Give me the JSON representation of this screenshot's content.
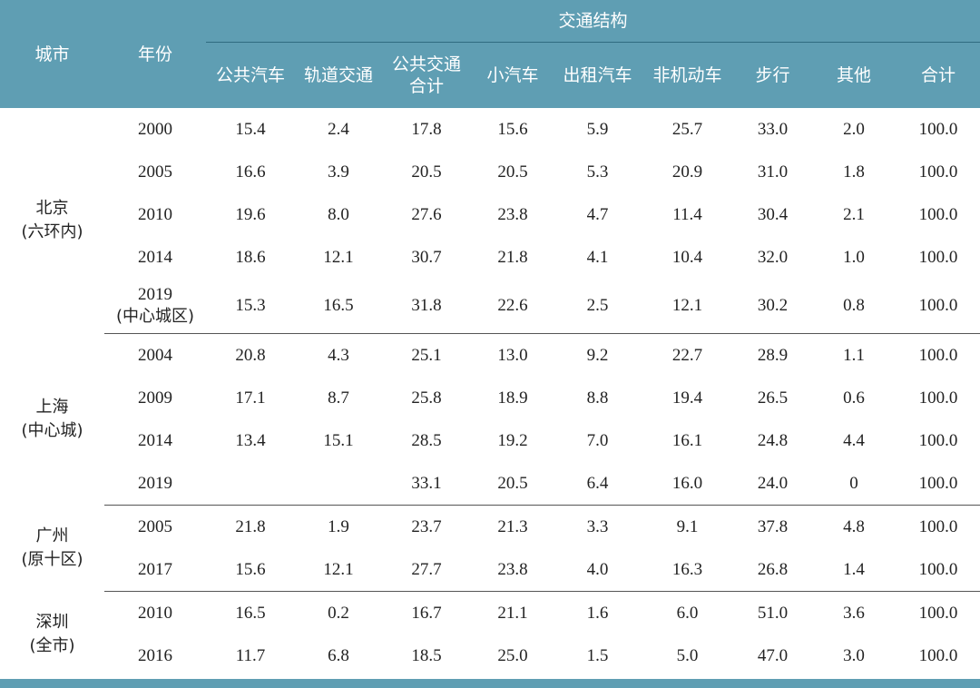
{
  "header": {
    "city": "城市",
    "year": "年份",
    "group": "交通结构",
    "columns": [
      "公共汽车",
      "轨道交通",
      "公共交通\n合计",
      "小汽车",
      "出租汽车",
      "非机动车",
      "步行",
      "其他",
      "合计"
    ]
  },
  "groups": [
    {
      "city_name": "北京",
      "city_note": "(六环内)",
      "rows": [
        {
          "year": "2000",
          "year_note": "",
          "values": [
            "15.4",
            "2.4",
            "17.8",
            "15.6",
            "5.9",
            "25.7",
            "33.0",
            "2.0",
            "100.0"
          ]
        },
        {
          "year": "2005",
          "year_note": "",
          "values": [
            "16.6",
            "3.9",
            "20.5",
            "20.5",
            "5.3",
            "20.9",
            "31.0",
            "1.8",
            "100.0"
          ]
        },
        {
          "year": "2010",
          "year_note": "",
          "values": [
            "19.6",
            "8.0",
            "27.6",
            "23.8",
            "4.7",
            "11.4",
            "30.4",
            "2.1",
            "100.0"
          ]
        },
        {
          "year": "2014",
          "year_note": "",
          "values": [
            "18.6",
            "12.1",
            "30.7",
            "21.8",
            "4.1",
            "10.4",
            "32.0",
            "1.0",
            "100.0"
          ]
        },
        {
          "year": "2019",
          "year_note": "(中心城区)",
          "values": [
            "15.3",
            "16.5",
            "31.8",
            "22.6",
            "2.5",
            "12.1",
            "30.2",
            "0.8",
            "100.0"
          ]
        }
      ]
    },
    {
      "city_name": "上海",
      "city_note": "(中心城)",
      "rows": [
        {
          "year": "2004",
          "year_note": "",
          "values": [
            "20.8",
            "4.3",
            "25.1",
            "13.0",
            "9.2",
            "22.7",
            "28.9",
            "1.1",
            "100.0"
          ]
        },
        {
          "year": "2009",
          "year_note": "",
          "values": [
            "17.1",
            "8.7",
            "25.8",
            "18.9",
            "8.8",
            "19.4",
            "26.5",
            "0.6",
            "100.0"
          ]
        },
        {
          "year": "2014",
          "year_note": "",
          "values": [
            "13.4",
            "15.1",
            "28.5",
            "19.2",
            "7.0",
            "16.1",
            "24.8",
            "4.4",
            "100.0"
          ]
        },
        {
          "year": "2019",
          "year_note": "",
          "values": [
            "",
            "",
            "33.1",
            "20.5",
            "6.4",
            "16.0",
            "24.0",
            "0",
            "100.0"
          ]
        }
      ]
    },
    {
      "city_name": "广州",
      "city_note": "(原十区)",
      "rows": [
        {
          "year": "2005",
          "year_note": "",
          "values": [
            "21.8",
            "1.9",
            "23.7",
            "21.3",
            "3.3",
            "9.1",
            "37.8",
            "4.8",
            "100.0"
          ]
        },
        {
          "year": "2017",
          "year_note": "",
          "values": [
            "15.6",
            "12.1",
            "27.7",
            "23.8",
            "4.0",
            "16.3",
            "26.8",
            "1.4",
            "100.0"
          ]
        }
      ]
    },
    {
      "city_name": "深圳",
      "city_note": "(全市)",
      "rows": [
        {
          "year": "2010",
          "year_note": "",
          "values": [
            "16.5",
            "0.2",
            "16.7",
            "21.1",
            "1.6",
            "6.0",
            "51.0",
            "3.6",
            "100.0"
          ]
        },
        {
          "year": "2016",
          "year_note": "",
          "values": [
            "11.7",
            "6.8",
            "18.5",
            "25.0",
            "1.5",
            "5.0",
            "47.0",
            "3.0",
            "100.0"
          ]
        }
      ]
    }
  ],
  "colors": {
    "header_bg": "#5f9eb3",
    "header_text": "#ffffff"
  }
}
